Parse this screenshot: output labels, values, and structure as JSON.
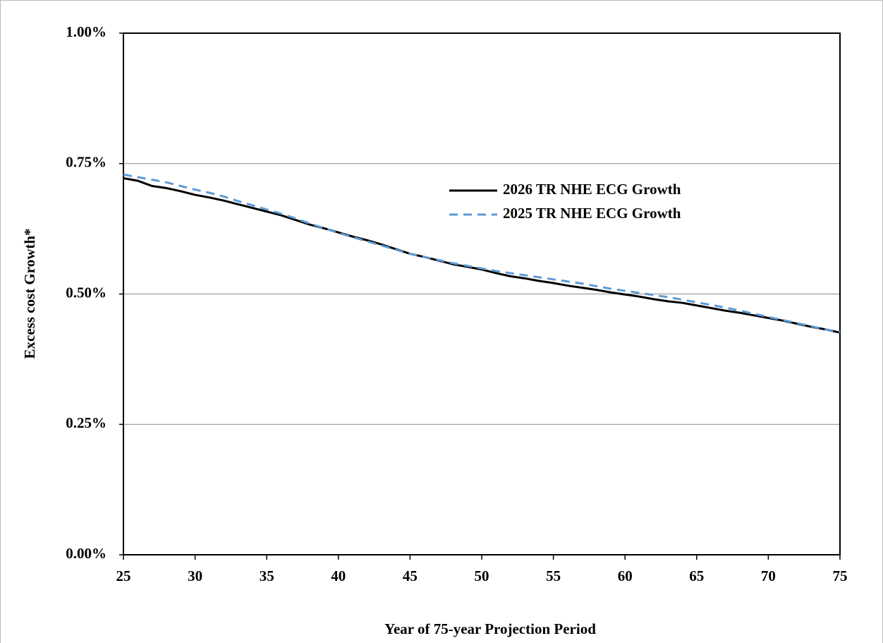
{
  "chart_data": {
    "type": "line",
    "x_label": "Year of 75-year Projection Period",
    "y_label": "Excess cost Growth*",
    "x": [
      25,
      26,
      27,
      28,
      29,
      30,
      31,
      32,
      33,
      34,
      35,
      36,
      37,
      38,
      39,
      40,
      41,
      42,
      43,
      44,
      45,
      46,
      47,
      48,
      49,
      50,
      51,
      52,
      53,
      54,
      55,
      56,
      57,
      58,
      59,
      60,
      61,
      62,
      63,
      64,
      65,
      66,
      67,
      68,
      69,
      70,
      71,
      72,
      73,
      74,
      75
    ],
    "series": [
      {
        "name": "2026 TR NHE ECG Growth",
        "color": "#000000",
        "dash": "solid",
        "values": [
          0.722,
          0.717,
          0.707,
          0.703,
          0.697,
          0.69,
          0.685,
          0.679,
          0.672,
          0.665,
          0.658,
          0.651,
          0.642,
          0.633,
          0.626,
          0.618,
          0.61,
          0.603,
          0.595,
          0.586,
          0.577,
          0.571,
          0.564,
          0.557,
          0.552,
          0.547,
          0.54,
          0.534,
          0.53,
          0.525,
          0.521,
          0.516,
          0.512,
          0.508,
          0.503,
          0.499,
          0.495,
          0.49,
          0.486,
          0.483,
          0.478,
          0.473,
          0.468,
          0.464,
          0.459,
          0.454,
          0.449,
          0.443,
          0.437,
          0.432,
          0.426
        ]
      },
      {
        "name": "2025 TR NHE ECG Growth",
        "color": "#5b9bd5",
        "dash": "dashed",
        "values": [
          0.729,
          0.724,
          0.719,
          0.714,
          0.707,
          0.7,
          0.694,
          0.687,
          0.678,
          0.67,
          0.662,
          0.654,
          0.645,
          0.635,
          0.626,
          0.617,
          0.609,
          0.601,
          0.593,
          0.585,
          0.577,
          0.571,
          0.565,
          0.559,
          0.554,
          0.549,
          0.544,
          0.54,
          0.536,
          0.532,
          0.528,
          0.524,
          0.52,
          0.515,
          0.51,
          0.506,
          0.502,
          0.498,
          0.494,
          0.489,
          0.484,
          0.479,
          0.474,
          0.468,
          0.462,
          0.456,
          0.45,
          0.444,
          0.438,
          0.432,
          0.427
        ]
      }
    ],
    "xlim": [
      25,
      75
    ],
    "xticks": [
      25,
      30,
      35,
      40,
      45,
      50,
      55,
      60,
      65,
      70,
      75
    ],
    "ylim": [
      0,
      1
    ],
    "yticks": [
      {
        "value": 0,
        "label": "0.00%"
      },
      {
        "value": 0.25,
        "label": "0.25%"
      },
      {
        "value": 0.5,
        "label": "0.50%"
      },
      {
        "value": 0.75,
        "label": "0.75%"
      },
      {
        "value": 1,
        "label": "1.00%"
      }
    ],
    "grid": true
  }
}
